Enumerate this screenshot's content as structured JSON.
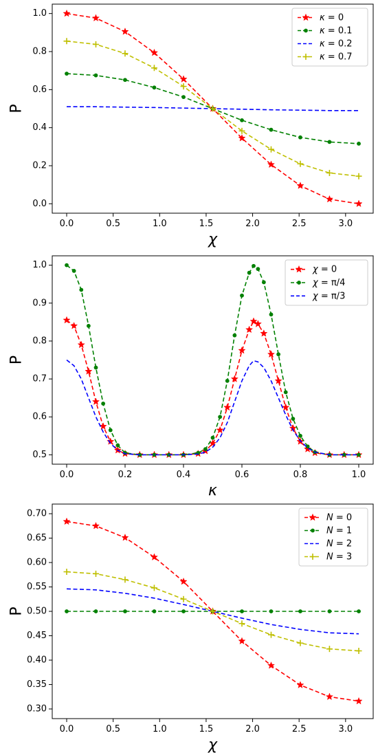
{
  "chart_data": [
    {
      "type": "line",
      "xlabel": "χ",
      "ylabel": "P",
      "xlim": [
        0,
        3.14159
      ],
      "ylim": [
        0.0,
        1.0
      ],
      "xticks": [
        0,
        0.5,
        1.0,
        1.5,
        2.0,
        2.5,
        3.0
      ],
      "xtick_labels": [
        "0.0",
        "0.5",
        "1.0",
        "1.5",
        "2.0",
        "2.5",
        "3.0"
      ],
      "yticks": [
        0.0,
        0.2,
        0.4,
        0.6,
        0.8,
        1.0
      ],
      "ytick_labels": [
        "0.0",
        "0.2",
        "0.4",
        "0.6",
        "0.8",
        "1.0"
      ],
      "grid": false,
      "legend_position": "top-right",
      "x": [
        0,
        0.314,
        0.628,
        0.942,
        1.257,
        1.571,
        1.885,
        2.199,
        2.513,
        2.827,
        3.142
      ],
      "series": [
        {
          "name": "κ = 0",
          "color": "#ff0000",
          "marker": "star",
          "linestyle": "dashed",
          "values": [
            1.0,
            0.976,
            0.905,
            0.794,
            0.655,
            0.5,
            0.345,
            0.206,
            0.095,
            0.024,
            0.0
          ]
        },
        {
          "name": "κ = 0.1",
          "color": "#008000",
          "marker": "circle",
          "linestyle": "dashed",
          "values": [
            0.684,
            0.675,
            0.651,
            0.611,
            0.561,
            0.5,
            0.439,
            0.389,
            0.349,
            0.325,
            0.316
          ]
        },
        {
          "name": "κ = 0.2",
          "color": "#0000ff",
          "marker": "none",
          "linestyle": "dashed",
          "values": [
            0.51,
            0.51,
            0.508,
            0.506,
            0.503,
            0.5,
            0.497,
            0.494,
            0.492,
            0.49,
            0.49
          ]
        },
        {
          "name": "κ = 0.7",
          "color": "#bfbf00",
          "marker": "plus",
          "linestyle": "dashed",
          "values": [
            0.855,
            0.838,
            0.79,
            0.714,
            0.617,
            0.5,
            0.383,
            0.286,
            0.21,
            0.162,
            0.145
          ]
        }
      ]
    },
    {
      "type": "line",
      "xlabel": "κ",
      "ylabel": "P",
      "xlim": [
        0,
        1.0
      ],
      "ylim": [
        0.5,
        1.0
      ],
      "xticks": [
        0,
        0.2,
        0.4,
        0.6,
        0.8,
        1.0
      ],
      "xtick_labels": [
        "0.0",
        "0.2",
        "0.4",
        "0.6",
        "0.8",
        "1.0"
      ],
      "yticks": [
        0.5,
        0.6,
        0.7,
        0.8,
        0.9,
        1.0
      ],
      "ytick_labels": [
        "0.5",
        "0.6",
        "0.7",
        "0.8",
        "0.9",
        "1.0"
      ],
      "grid": false,
      "legend_position": "top-right",
      "x": [
        0,
        0.025,
        0.05,
        0.075,
        0.1,
        0.125,
        0.15,
        0.175,
        0.2,
        0.25,
        0.3,
        0.35,
        0.4,
        0.45,
        0.475,
        0.5,
        0.525,
        0.55,
        0.575,
        0.6,
        0.625,
        0.64,
        0.655,
        0.675,
        0.7,
        0.725,
        0.75,
        0.775,
        0.8,
        0.825,
        0.85,
        0.9,
        0.95,
        1.0
      ],
      "series": [
        {
          "name": "χ = 0",
          "color": "#ff0000",
          "marker": "star",
          "linestyle": "dashed",
          "values": [
            0.855,
            0.84,
            0.79,
            0.72,
            0.64,
            0.575,
            0.535,
            0.512,
            0.503,
            0.5,
            0.5,
            0.5,
            0.5,
            0.503,
            0.51,
            0.53,
            0.565,
            0.625,
            0.7,
            0.775,
            0.83,
            0.852,
            0.845,
            0.82,
            0.765,
            0.695,
            0.625,
            0.57,
            0.535,
            0.515,
            0.505,
            0.5,
            0.5,
            0.5
          ]
        },
        {
          "name": "χ = π/4",
          "color": "#008000",
          "marker": "circle",
          "linestyle": "dashed",
          "values": [
            1.0,
            0.985,
            0.935,
            0.84,
            0.73,
            0.635,
            0.565,
            0.525,
            0.505,
            0.5,
            0.5,
            0.5,
            0.5,
            0.505,
            0.515,
            0.545,
            0.6,
            0.695,
            0.815,
            0.92,
            0.98,
            0.998,
            0.99,
            0.955,
            0.87,
            0.765,
            0.665,
            0.595,
            0.55,
            0.522,
            0.507,
            0.5,
            0.5,
            0.5
          ]
        },
        {
          "name": "χ = π/3",
          "color": "#0000ff",
          "marker": "none",
          "linestyle": "dashed",
          "values": [
            0.75,
            0.735,
            0.7,
            0.65,
            0.6,
            0.56,
            0.53,
            0.512,
            0.503,
            0.5,
            0.5,
            0.5,
            0.5,
            0.502,
            0.507,
            0.52,
            0.545,
            0.585,
            0.64,
            0.695,
            0.735,
            0.748,
            0.745,
            0.73,
            0.695,
            0.65,
            0.605,
            0.565,
            0.537,
            0.518,
            0.507,
            0.5,
            0.5,
            0.5
          ]
        }
      ]
    },
    {
      "type": "line",
      "xlabel": "χ",
      "ylabel": "P",
      "xlim": [
        0,
        3.14159
      ],
      "ylim": [
        0.3,
        0.7
      ],
      "xticks": [
        0,
        0.5,
        1.0,
        1.5,
        2.0,
        2.5,
        3.0
      ],
      "xtick_labels": [
        "0.0",
        "0.5",
        "1.0",
        "1.5",
        "2.0",
        "2.5",
        "3.0"
      ],
      "yticks": [
        0.3,
        0.35,
        0.4,
        0.45,
        0.5,
        0.55,
        0.6,
        0.65,
        0.7
      ],
      "ytick_labels": [
        "0.30",
        "0.35",
        "0.40",
        "0.45",
        "0.50",
        "0.55",
        "0.60",
        "0.65",
        "0.70"
      ],
      "grid": false,
      "legend_position": "top-right",
      "x": [
        0,
        0.314,
        0.628,
        0.942,
        1.257,
        1.571,
        1.885,
        2.199,
        2.513,
        2.827,
        3.142
      ],
      "series": [
        {
          "name": "N = 0",
          "color": "#ff0000",
          "marker": "star",
          "linestyle": "dashed",
          "values": [
            0.684,
            0.675,
            0.651,
            0.611,
            0.561,
            0.5,
            0.439,
            0.389,
            0.349,
            0.325,
            0.316
          ]
        },
        {
          "name": "N = 1",
          "color": "#008000",
          "marker": "circle",
          "linestyle": "dashed",
          "values": [
            0.5,
            0.5,
            0.5,
            0.5,
            0.5,
            0.5,
            0.5,
            0.5,
            0.5,
            0.5,
            0.5
          ]
        },
        {
          "name": "N = 2",
          "color": "#0000ff",
          "marker": "none",
          "linestyle": "dashed",
          "values": [
            0.546,
            0.544,
            0.537,
            0.527,
            0.514,
            0.5,
            0.486,
            0.473,
            0.463,
            0.456,
            0.454
          ]
        },
        {
          "name": "N = 3",
          "color": "#bfbf00",
          "marker": "plus",
          "linestyle": "dashed",
          "values": [
            0.581,
            0.577,
            0.565,
            0.548,
            0.525,
            0.5,
            0.475,
            0.452,
            0.435,
            0.423,
            0.419
          ]
        }
      ]
    }
  ]
}
